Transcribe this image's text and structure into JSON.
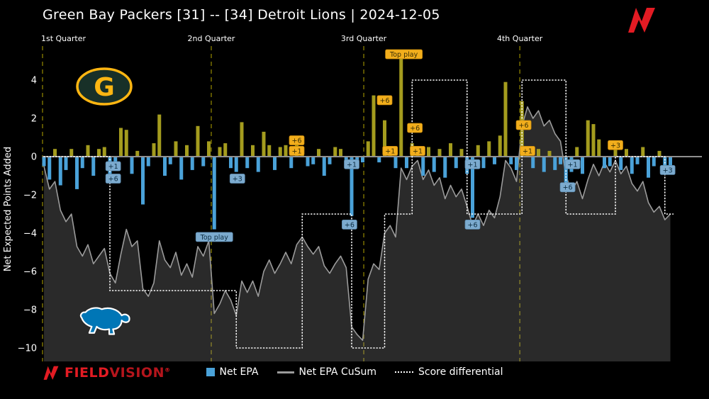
{
  "header": {
    "title": "Green Bay Packers [31] -- [34] Detroit Lions  |  2024-12-05"
  },
  "game": {
    "away_team": "Green Bay Packers",
    "away_score": 31,
    "home_team": "Detroit Lions",
    "home_score": 34,
    "date": "2024-12-05"
  },
  "axis": {
    "y_label": "Net Expected Points Added"
  },
  "legend": [
    {
      "label": "Net EPA",
      "swatch": "square",
      "color": "#4aa2d9"
    },
    {
      "label": "Net EPA CuSum",
      "swatch": "line",
      "color": "#9b9b9b"
    },
    {
      "label": "Score differential",
      "swatch": "dotted",
      "color": "#ffffff"
    }
  ],
  "branding": {
    "field": "FIELD",
    "vision": "VISION",
    "reg": "®"
  },
  "icons": {
    "packers_logo": "packers-g-logo",
    "packers_letter": "G",
    "lions_logo": "lions-leaping-lion-logo",
    "fieldvision_logo": "fieldvision-check-logo"
  },
  "chart_data": {
    "type": "bar",
    "title": "Green Bay Packers [31] -- [34] Detroit Lions | 2024-12-05",
    "xlabel": "",
    "ylabel": "Net Expected Points Added",
    "ylim": [
      -10.8,
      5.8
    ],
    "y_ticks": [
      4,
      2,
      0,
      -2,
      -4,
      -6,
      -8,
      -10
    ],
    "grid": false,
    "legend_position": "bottom",
    "quarters": [
      {
        "label": "1st Quarter",
        "i": -0.26,
        "anchor": "start"
      },
      {
        "label": "2nd Quarter",
        "i": 30.45,
        "anchor": "middle"
      },
      {
        "label": "3rd Quarter",
        "i": 58.2,
        "anchor": "middle"
      },
      {
        "label": "4th Quarter",
        "i": 86.6,
        "anchor": "middle"
      }
    ],
    "series": [
      {
        "name": "Net EPA",
        "type": "bar"
      },
      {
        "name": "Net EPA CuSum",
        "type": "area"
      },
      {
        "name": "Score differential",
        "type": "step"
      }
    ],
    "bars": [
      -0.5,
      -1.2,
      0.4,
      -1.5,
      -0.7,
      0.4,
      -1.7,
      -0.6,
      0.6,
      -1.0,
      0.4,
      0.5,
      -1.3,
      -0.6,
      1.5,
      1.4,
      -0.9,
      0.3,
      -2.5,
      -0.5,
      0.7,
      2.2,
      -1.0,
      -0.4,
      0.8,
      -1.2,
      0.6,
      -0.7,
      1.6,
      -0.5,
      0.8,
      -3.8,
      0.5,
      0.7,
      -0.6,
      -0.8,
      1.8,
      -0.6,
      0.6,
      -0.8,
      1.3,
      0.6,
      -0.7,
      0.5,
      0.6,
      -0.6,
      1.0,
      0.4,
      -0.5,
      -0.4,
      0.4,
      -1.0,
      -0.4,
      0.5,
      0.4,
      -0.6,
      -3.1,
      -0.4,
      -0.3,
      0.8,
      3.2,
      -0.3,
      1.9,
      0.4,
      -0.6,
      5.3,
      -0.6,
      0.7,
      0.3,
      -1.0,
      0.5,
      -0.8,
      0.4,
      -1.1,
      0.7,
      -0.6,
      0.4,
      -0.9,
      -3.2,
      0.6,
      -0.6,
      0.8,
      -0.4,
      1.1,
      3.9,
      -0.4,
      -0.7,
      2.9,
      0.3,
      -0.6,
      0.4,
      -0.8,
      0.3,
      -0.7,
      -0.4,
      -1.8,
      -0.8,
      0.5,
      -0.9,
      1.9,
      1.7,
      0.9,
      -0.6,
      -0.5,
      0.6,
      -0.7,
      0.4,
      -0.9,
      -0.4,
      0.5,
      -1.1,
      -0.5,
      0.3,
      -0.7,
      -0.9
    ],
    "cusum": [
      -0.5,
      -1.7,
      -1.3,
      -2.8,
      -3.4,
      -3.0,
      -4.7,
      -5.2,
      -4.6,
      -5.6,
      -5.2,
      -4.8,
      -6.1,
      -6.6,
      -5.1,
      -3.8,
      -4.7,
      -4.4,
      -6.9,
      -7.3,
      -6.6,
      -4.4,
      -5.4,
      -5.8,
      -5.0,
      -6.2,
      -5.6,
      -6.3,
      -4.7,
      -5.2,
      -4.4,
      -8.2,
      -7.7,
      -7.0,
      -7.5,
      -8.3,
      -6.5,
      -7.1,
      -6.5,
      -7.3,
      -6.0,
      -5.4,
      -6.1,
      -5.6,
      -5.0,
      -5.6,
      -4.6,
      -4.2,
      -4.7,
      -5.1,
      -4.7,
      -5.7,
      -6.1,
      -5.6,
      -5.2,
      -5.8,
      -8.9,
      -9.3,
      -9.6,
      -6.4,
      -5.6,
      -5.9,
      -4.0,
      -3.6,
      -4.2,
      -0.6,
      -1.2,
      -0.5,
      -0.2,
      -1.2,
      -0.7,
      -1.5,
      -1.1,
      -2.2,
      -1.5,
      -2.1,
      -1.7,
      -2.6,
      -3.6,
      -3.0,
      -3.6,
      -2.8,
      -3.2,
      -2.1,
      -0.2,
      -0.6,
      -1.3,
      1.6,
      2.6,
      2.0,
      2.4,
      1.6,
      1.9,
      1.2,
      0.8,
      -1.0,
      -1.8,
      -1.3,
      -2.2,
      -1.2,
      -0.4,
      -1.0,
      -0.3,
      -0.8,
      -0.2,
      -0.9,
      -0.5,
      -1.4,
      -1.8,
      -1.3,
      -2.4,
      -2.9,
      -2.6,
      -3.3,
      -3.0
    ],
    "score_diff_steps": [
      {
        "i0": 0,
        "i1": 12,
        "v": 0
      },
      {
        "i0": 12,
        "i1": 35,
        "v": -7
      },
      {
        "i0": 35,
        "i1": 47,
        "v": -10
      },
      {
        "i0": 47,
        "i1": 56,
        "v": -3
      },
      {
        "i0": 56,
        "i1": 62,
        "v": -10
      },
      {
        "i0": 62,
        "i1": 67,
        "v": -3
      },
      {
        "i0": 67,
        "i1": 77,
        "v": 4
      },
      {
        "i0": 77,
        "i1": 87,
        "v": -3
      },
      {
        "i0": 87,
        "i1": 95,
        "v": 4
      },
      {
        "i0": 95,
        "i1": 104,
        "v": -3
      },
      {
        "i0": 104,
        "i1": 113,
        "v": 0
      },
      {
        "i0": 113,
        "i1": 114.5,
        "v": -3
      }
    ],
    "annotations": [
      {
        "text": "Top play",
        "i": 65.5,
        "v": 5.35,
        "style": "gold"
      },
      {
        "text": "+6",
        "i": 46,
        "v": 0.85,
        "style": "gold"
      },
      {
        "text": "+1",
        "i": 46,
        "v": 0.3,
        "style": "gold"
      },
      {
        "text": "+6",
        "i": 62,
        "v": 2.95,
        "style": "gold"
      },
      {
        "text": "+1",
        "i": 63,
        "v": 0.3,
        "style": "gold"
      },
      {
        "text": "+6",
        "i": 67.5,
        "v": 1.5,
        "style": "gold"
      },
      {
        "text": "+1",
        "i": 68,
        "v": 0.3,
        "style": "gold"
      },
      {
        "text": "+6",
        "i": 87.3,
        "v": 1.65,
        "style": "gold"
      },
      {
        "text": "+1",
        "i": 88,
        "v": 0.3,
        "style": "gold"
      },
      {
        "text": "+3",
        "i": 104,
        "v": 0.6,
        "style": "gold"
      },
      {
        "text": "Top play",
        "i": 31,
        "v": -4.2,
        "style": "blue"
      },
      {
        "text": "+1",
        "i": 12.6,
        "v": -0.5,
        "style": "blue"
      },
      {
        "text": "+6",
        "i": 12.6,
        "v": -1.15,
        "style": "blue"
      },
      {
        "text": "+3",
        "i": 35.2,
        "v": -1.15,
        "style": "blue"
      },
      {
        "text": "+1",
        "i": 56,
        "v": -0.4,
        "style": "blue"
      },
      {
        "text": "+6",
        "i": 55.6,
        "v": -3.55,
        "style": "blue"
      },
      {
        "text": "+1",
        "i": 78,
        "v": -0.4,
        "style": "blue"
      },
      {
        "text": "+6",
        "i": 78,
        "v": -3.55,
        "style": "blue"
      },
      {
        "text": "+1",
        "i": 96.2,
        "v": -0.4,
        "style": "blue"
      },
      {
        "text": "+6",
        "i": 95.3,
        "v": -1.6,
        "style": "blue"
      },
      {
        "text": "+3",
        "i": 113.5,
        "v": -0.7,
        "style": "blue"
      }
    ],
    "colors": {
      "bar_pos": "#a49c1e",
      "bar_neg": "#4aa2d9",
      "cusum_line": "#9b9b9b",
      "cusum_fill": "rgba(140,140,140,0.30)",
      "score_line": "#ffffff",
      "quarter_line": "#a89b00",
      "zero_line": "#909090",
      "tick_text": "#ffffff",
      "badge_gold_bg": "#f2ae1c",
      "badge_gold_text": "#3a2f05",
      "badge_blue_bg": "#7cabcf",
      "badge_blue_text": "#0d2d42",
      "packers_green": "#183028",
      "packers_gold": "#ffb612",
      "lions_blue": "#0076b6",
      "brand_red": "#e31b23"
    }
  }
}
